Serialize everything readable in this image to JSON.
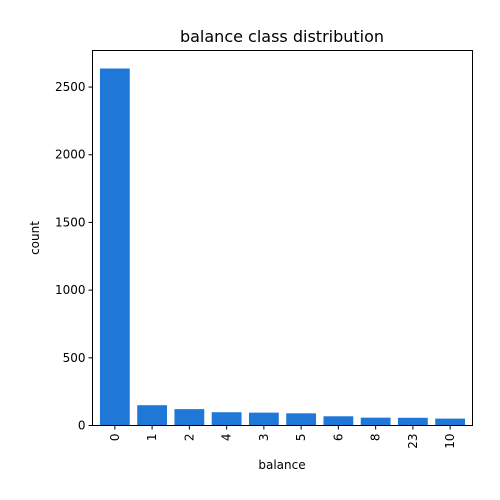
{
  "chart_data": {
    "type": "bar",
    "title": "balance class distribution",
    "xlabel": "balance",
    "ylabel": "count",
    "categories": [
      "0",
      "1",
      "2",
      "4",
      "3",
      "5",
      "6",
      "8",
      "23",
      "10"
    ],
    "values": [
      2637,
      150,
      121,
      98,
      95,
      90,
      68,
      58,
      57,
      51
    ],
    "ylim": [
      0,
      2770
    ],
    "yticks": [
      0,
      500,
      1000,
      1500,
      2000,
      2500
    ],
    "bar_color": "#1f77d8",
    "grid": false,
    "legend": "none"
  }
}
